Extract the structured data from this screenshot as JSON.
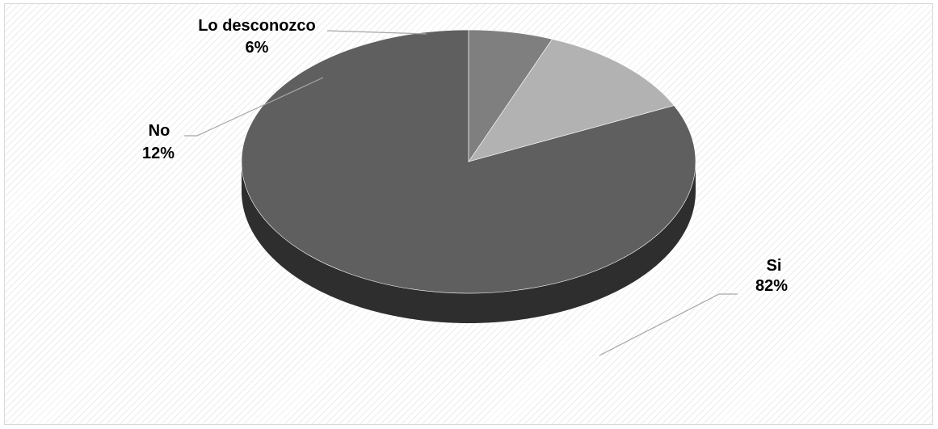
{
  "chart_data": {
    "type": "pie",
    "title": "",
    "style": "3d",
    "slices": [
      {
        "category": "Si",
        "value": 82,
        "label": "82%",
        "color": "#5f5f5f"
      },
      {
        "category": "No",
        "value": 12,
        "label": "12%",
        "color": "#b2b2b2"
      },
      {
        "category": "Lo desconozco",
        "value": 6,
        "label": "6%",
        "color": "#7f7f7f"
      }
    ],
    "side_color": "#2e2e2e",
    "leader_color": "#a6a6a6",
    "legend": "none"
  }
}
